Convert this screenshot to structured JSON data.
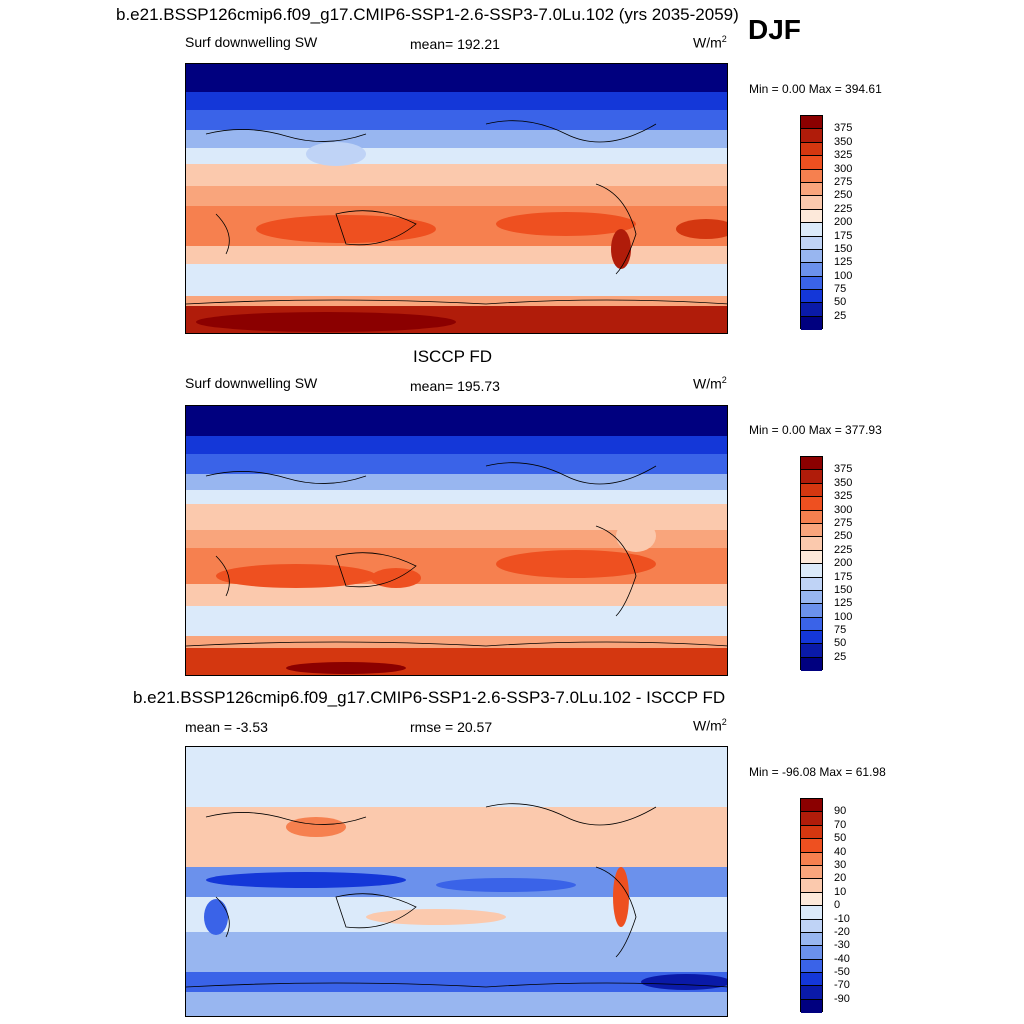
{
  "season": "DJF",
  "panels": [
    {
      "title": "b.e21.BSSP126cmip6.f09_g17.CMIP6-SSP1-2.6-SSP3-7.0Lu.102 (yrs 2035-2059)",
      "left_label": "Surf downwelling SW",
      "center_label": "mean= 192.21",
      "units": "W/m",
      "units_exp": "2",
      "minmax": "Min =   0.00 Max = 394.61"
    },
    {
      "title": "ISCCP FD",
      "left_label": "Surf downwelling SW",
      "center_label": "mean= 195.73",
      "units": "W/m",
      "units_exp": "2",
      "minmax": "Min =   0.00 Max = 377.93"
    },
    {
      "title": "b.e21.BSSP126cmip6.f09_g17.CMIP6-SSP1-2.6-SSP3-7.0Lu.102 - ISCCP FD",
      "left_label": "mean =  -3.53",
      "center_label": "rmse =  20.57",
      "units": "W/m",
      "units_exp": "2",
      "minmax": "Min = -96.08 Max =  61.98"
    }
  ],
  "chart_data": [
    {
      "type": "heatmap",
      "title": "b.e21.BSSP126cmip6.f09_g17.CMIP6-SSP1-2.6-SSP3-7.0Lu.102 (yrs 2035-2059)",
      "variable": "Surf downwelling SW",
      "mean": 192.21,
      "min": 0.0,
      "max": 394.61,
      "colorbar_levels": [
        375,
        350,
        325,
        300,
        275,
        250,
        225,
        200,
        175,
        150,
        125,
        100,
        75,
        50,
        25
      ],
      "colorbar_colors": [
        "#8b0000",
        "#b01c0a",
        "#d43710",
        "#ee5020",
        "#f6804f",
        "#f9a57c",
        "#fbc9ad",
        "#fde9da",
        "#dbeafa",
        "#bfd3f6",
        "#98b6f0",
        "#6b91ec",
        "#3a63e8",
        "#1437d8",
        "#0a1aa8",
        "#00007f"
      ]
    },
    {
      "type": "heatmap",
      "title": "ISCCP FD",
      "variable": "Surf downwelling SW",
      "mean": 195.73,
      "min": 0.0,
      "max": 377.93,
      "colorbar_levels": [
        375,
        350,
        325,
        300,
        275,
        250,
        225,
        200,
        175,
        150,
        125,
        100,
        75,
        50,
        25
      ],
      "colorbar_colors": [
        "#8b0000",
        "#b01c0a",
        "#d43710",
        "#ee5020",
        "#f6804f",
        "#f9a57c",
        "#fbc9ad",
        "#fde9da",
        "#dbeafa",
        "#bfd3f6",
        "#98b6f0",
        "#6b91ec",
        "#3a63e8",
        "#1437d8",
        "#0a1aa8",
        "#00007f"
      ]
    },
    {
      "type": "heatmap",
      "title": "b.e21.BSSP126cmip6.f09_g17.CMIP6-SSP1-2.6-SSP3-7.0Lu.102 - ISCCP FD",
      "mean": -3.53,
      "rmse": 20.57,
      "min": -96.08,
      "max": 61.98,
      "colorbar_levels": [
        90,
        70,
        50,
        40,
        30,
        20,
        10,
        0,
        -10,
        -20,
        -30,
        -40,
        -50,
        -70,
        -90
      ],
      "colorbar_colors": [
        "#8b0000",
        "#b01c0a",
        "#d43710",
        "#ee5020",
        "#f6804f",
        "#f9a57c",
        "#fbc9ad",
        "#fde9da",
        "#dbeafa",
        "#bfd3f6",
        "#98b6f0",
        "#6b91ec",
        "#3a63e8",
        "#1437d8",
        "#0a1aa8",
        "#00007f"
      ]
    }
  ]
}
